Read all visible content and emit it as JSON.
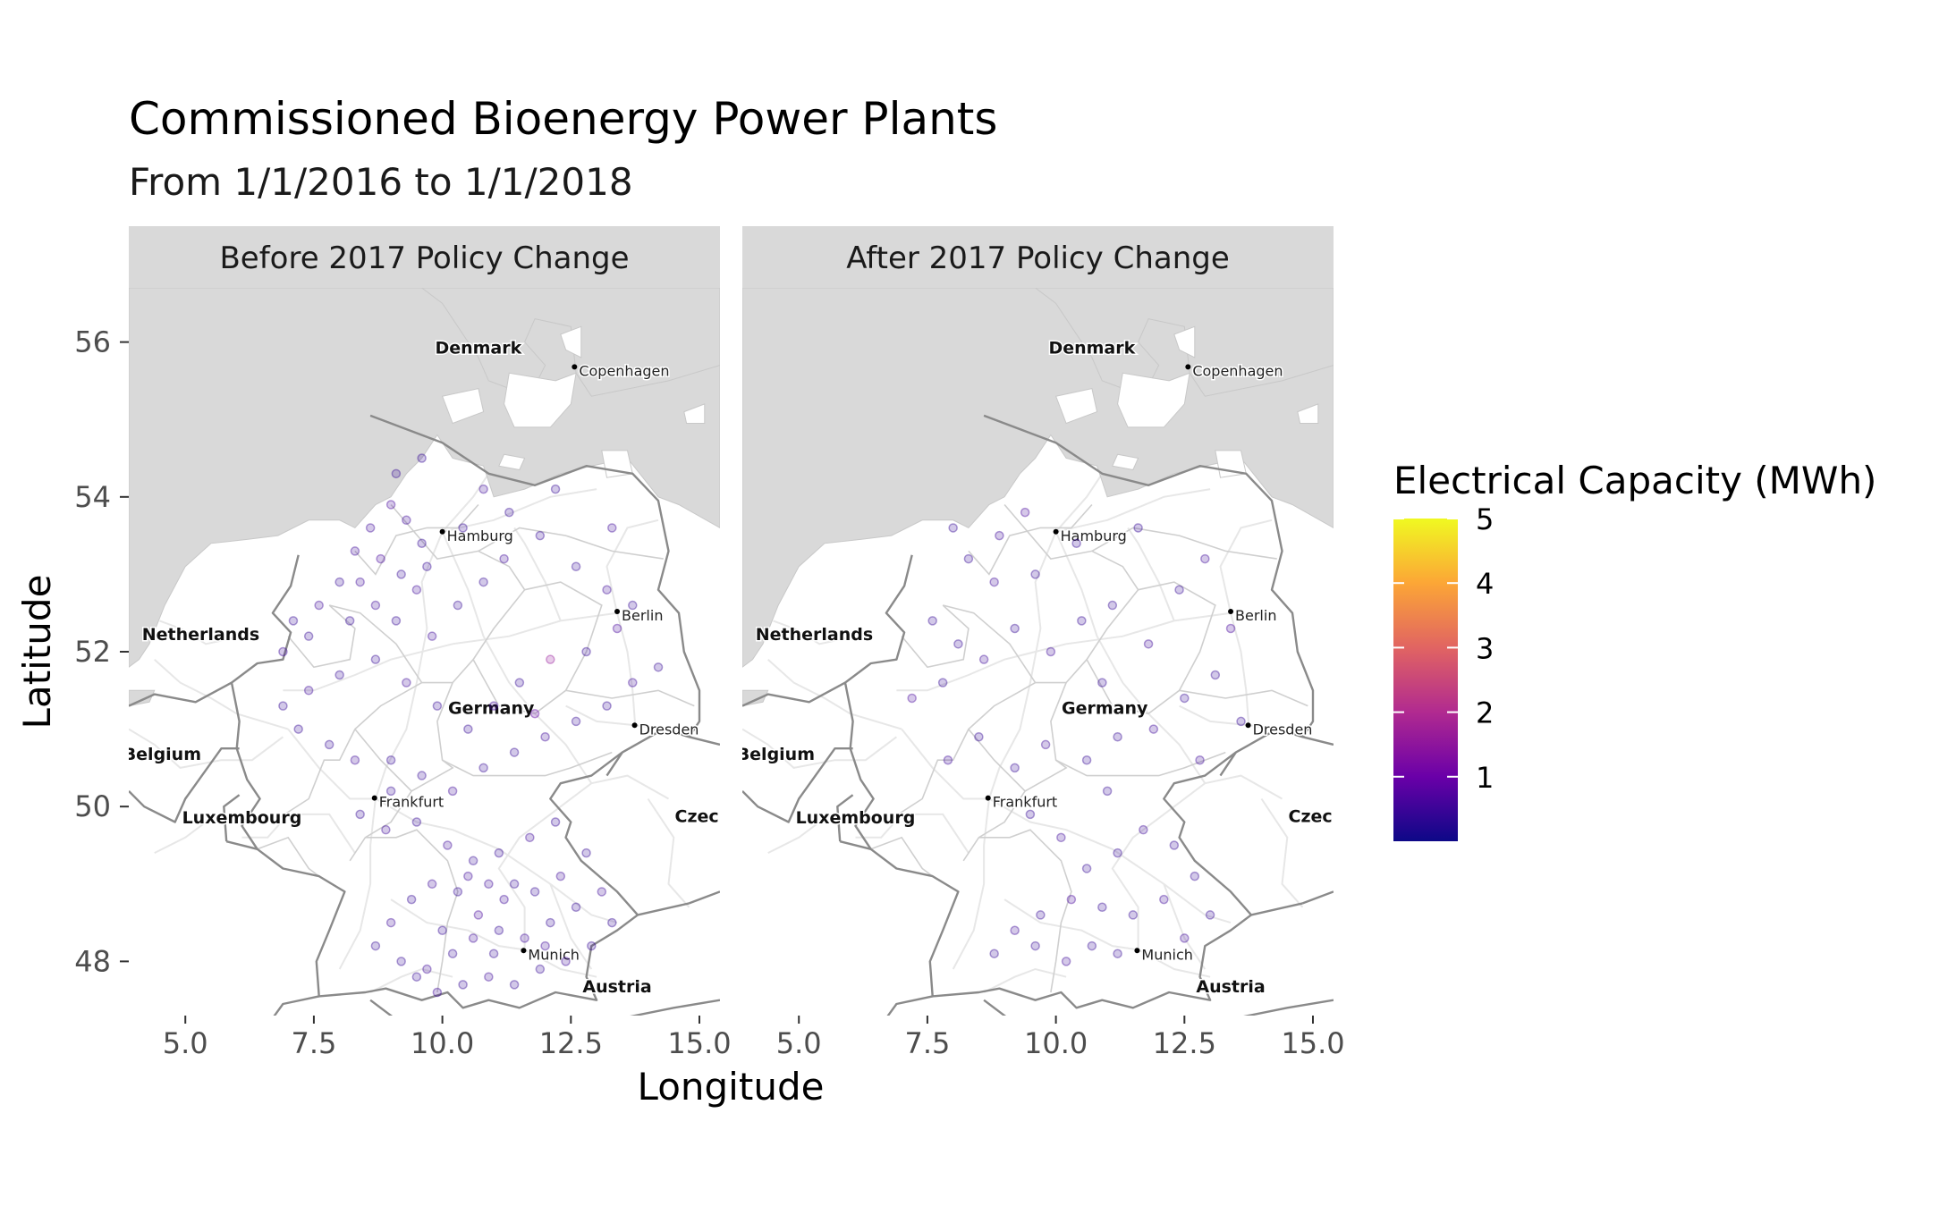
{
  "chart_data": {
    "type": "scatter",
    "title": "Commissioned Bioenergy Power Plants",
    "subtitle": "From 1/1/2016 to 1/1/2018",
    "xlabel": "Longitude",
    "ylabel": "Latitude",
    "xlim": [
      3.9,
      15.4
    ],
    "ylim": [
      47.3,
      56.7
    ],
    "x_ticks": [
      "5.0",
      "7.5",
      "10.0",
      "12.5",
      "15.0"
    ],
    "x_tick_values": [
      5.0,
      7.5,
      10.0,
      12.5,
      15.0
    ],
    "y_ticks": [
      "48",
      "50",
      "52",
      "54",
      "56"
    ],
    "y_tick_values": [
      48,
      50,
      52,
      54,
      56
    ],
    "grid": false,
    "basemap_color": "#d9d9d9",
    "legend": {
      "title": "Electrical Capacity (MWh)",
      "placement": "right",
      "labels": [
        "5",
        "4",
        "3",
        "2",
        "1"
      ],
      "values": [
        5,
        4,
        3,
        2,
        1
      ],
      "range": [
        0,
        5
      ],
      "colors": [
        "#0d0887",
        "#6a00a8",
        "#b12a90",
        "#e16462",
        "#fca636",
        "#f0f921"
      ]
    },
    "panels": [
      {
        "label": "Before 2017 Policy Change",
        "map_labels": [
          {
            "text": "Denmark",
            "kind": "country"
          },
          {
            "text": "Copenhagen",
            "kind": "city"
          },
          {
            "text": "Hamburg",
            "kind": "city"
          },
          {
            "text": "Berlin",
            "kind": "city"
          },
          {
            "text": "Netherlands",
            "kind": "country"
          },
          {
            "text": "Germany",
            "kind": "country"
          },
          {
            "text": "Dresden",
            "kind": "city"
          },
          {
            "text": "Belgium",
            "kind": "country"
          },
          {
            "text": "Frankfurt",
            "kind": "city"
          },
          {
            "text": "Luxembourg",
            "kind": "country"
          },
          {
            "text": "Czec",
            "kind": "country"
          },
          {
            "text": "Munich",
            "kind": "city"
          },
          {
            "text": "Austria",
            "kind": "country"
          }
        ],
        "points": [
          [
            9.0,
            53.9,
            0.6
          ],
          [
            9.3,
            53.7,
            0.5
          ],
          [
            9.6,
            53.4,
            0.4
          ],
          [
            8.6,
            53.6,
            0.5
          ],
          [
            8.3,
            53.3,
            0.5
          ],
          [
            8.8,
            53.2,
            0.6
          ],
          [
            9.2,
            53.0,
            0.4
          ],
          [
            9.5,
            52.8,
            0.5
          ],
          [
            8.0,
            52.9,
            0.4
          ],
          [
            7.6,
            52.6,
            0.5
          ],
          [
            8.2,
            52.4,
            0.4
          ],
          [
            8.7,
            52.6,
            0.5
          ],
          [
            9.1,
            52.4,
            0.4
          ],
          [
            9.8,
            52.2,
            0.5
          ],
          [
            10.3,
            52.6,
            0.4
          ],
          [
            10.8,
            52.9,
            0.4
          ],
          [
            11.2,
            53.2,
            0.5
          ],
          [
            11.9,
            53.5,
            0.4
          ],
          [
            12.6,
            53.1,
            0.4
          ],
          [
            13.2,
            52.8,
            0.5
          ],
          [
            13.7,
            52.6,
            0.4
          ],
          [
            13.4,
            52.3,
            0.6
          ],
          [
            12.8,
            52.0,
            0.4
          ],
          [
            12.1,
            51.9,
            1.6
          ],
          [
            11.5,
            51.6,
            0.4
          ],
          [
            11.0,
            51.3,
            0.5
          ],
          [
            10.5,
            51.0,
            0.4
          ],
          [
            9.9,
            51.3,
            0.4
          ],
          [
            9.3,
            51.6,
            0.5
          ],
          [
            8.7,
            51.9,
            0.4
          ],
          [
            8.0,
            51.7,
            0.4
          ],
          [
            7.4,
            51.5,
            0.5
          ],
          [
            6.9,
            51.3,
            0.4
          ],
          [
            7.2,
            51.0,
            0.4
          ],
          [
            7.8,
            50.8,
            0.4
          ],
          [
            8.3,
            50.6,
            0.5
          ],
          [
            9.0,
            50.6,
            0.4
          ],
          [
            9.6,
            50.4,
            0.4
          ],
          [
            10.2,
            50.2,
            0.5
          ],
          [
            10.8,
            50.5,
            0.4
          ],
          [
            11.4,
            50.7,
            0.4
          ],
          [
            12.0,
            50.9,
            0.5
          ],
          [
            12.6,
            51.1,
            0.4
          ],
          [
            13.2,
            51.3,
            0.4
          ],
          [
            13.7,
            51.6,
            0.5
          ],
          [
            14.2,
            51.8,
            0.4
          ],
          [
            11.8,
            51.2,
            0.9
          ],
          [
            9.0,
            50.2,
            0.4
          ],
          [
            8.4,
            49.9,
            0.4
          ],
          [
            8.9,
            49.7,
            0.5
          ],
          [
            9.5,
            49.8,
            0.4
          ],
          [
            10.1,
            49.5,
            0.5
          ],
          [
            10.6,
            49.3,
            0.4
          ],
          [
            11.1,
            49.4,
            0.4
          ],
          [
            11.7,
            49.6,
            0.5
          ],
          [
            12.2,
            49.8,
            0.4
          ],
          [
            12.8,
            49.4,
            0.4
          ],
          [
            12.3,
            49.1,
            0.5
          ],
          [
            11.8,
            48.9,
            0.4
          ],
          [
            11.2,
            48.8,
            0.5
          ],
          [
            10.7,
            48.6,
            0.6
          ],
          [
            10.3,
            48.9,
            0.4
          ],
          [
            9.8,
            49.0,
            0.5
          ],
          [
            9.4,
            48.8,
            0.4
          ],
          [
            9.0,
            48.5,
            0.5
          ],
          [
            8.7,
            48.2,
            0.4
          ],
          [
            9.2,
            48.0,
            0.4
          ],
          [
            9.7,
            47.9,
            0.5
          ],
          [
            10.2,
            48.1,
            0.4
          ],
          [
            10.6,
            48.3,
            0.5
          ],
          [
            11.1,
            48.4,
            0.4
          ],
          [
            11.6,
            48.3,
            0.5
          ],
          [
            12.1,
            48.5,
            0.4
          ],
          [
            12.6,
            48.7,
            0.4
          ],
          [
            13.1,
            48.9,
            0.5
          ],
          [
            13.3,
            48.5,
            0.4
          ],
          [
            12.9,
            48.2,
            0.4
          ],
          [
            12.4,
            48.0,
            0.5
          ],
          [
            11.9,
            47.9,
            0.4
          ],
          [
            11.4,
            47.7,
            0.4
          ],
          [
            10.9,
            47.8,
            0.5
          ],
          [
            10.4,
            47.7,
            0.4
          ],
          [
            9.9,
            47.6,
            0.5
          ],
          [
            9.5,
            47.8,
            0.4
          ],
          [
            10.5,
            49.1,
            0.5
          ],
          [
            11.0,
            48.1,
            0.4
          ],
          [
            12.0,
            48.2,
            0.5
          ],
          [
            10.0,
            48.4,
            0.4
          ],
          [
            10.9,
            49.0,
            0.5
          ],
          [
            11.4,
            49.0,
            0.4
          ],
          [
            7.4,
            52.2,
            0.4
          ],
          [
            6.9,
            52.0,
            0.5
          ],
          [
            7.1,
            52.4,
            0.4
          ],
          [
            8.4,
            52.9,
            0.5
          ],
          [
            9.7,
            53.1,
            0.4
          ],
          [
            10.4,
            53.6,
            0.4
          ],
          [
            10.8,
            54.1,
            0.5
          ],
          [
            11.3,
            53.8,
            0.4
          ],
          [
            12.2,
            54.1,
            0.4
          ],
          [
            13.3,
            53.6,
            0.5
          ],
          [
            9.1,
            54.3,
            0.4
          ],
          [
            9.6,
            54.5,
            0.4
          ]
        ]
      },
      {
        "label": "After 2017 Policy Change",
        "map_labels": [
          {
            "text": "Denmark",
            "kind": "country"
          },
          {
            "text": "Copenhagen",
            "kind": "city"
          },
          {
            "text": "Hamburg",
            "kind": "city"
          },
          {
            "text": "Berlin",
            "kind": "city"
          },
          {
            "text": "Netherlands",
            "kind": "country"
          },
          {
            "text": "Germany",
            "kind": "country"
          },
          {
            "text": "Dresden",
            "kind": "city"
          },
          {
            "text": "Belgium",
            "kind": "country"
          },
          {
            "text": "Frankfurt",
            "kind": "city"
          },
          {
            "text": "Luxembourg",
            "kind": "country"
          },
          {
            "text": "Czec",
            "kind": "country"
          },
          {
            "text": "Munich",
            "kind": "city"
          },
          {
            "text": "Austria",
            "kind": "country"
          }
        ],
        "points": [
          [
            9.4,
            53.8,
            0.6
          ],
          [
            8.9,
            53.5,
            0.5
          ],
          [
            8.3,
            53.2,
            0.4
          ],
          [
            8.8,
            52.9,
            0.5
          ],
          [
            7.6,
            52.4,
            0.4
          ],
          [
            8.1,
            52.1,
            0.4
          ],
          [
            8.6,
            51.9,
            0.5
          ],
          [
            7.2,
            51.4,
            0.6
          ],
          [
            7.8,
            51.6,
            0.4
          ],
          [
            9.2,
            52.3,
            0.4
          ],
          [
            9.9,
            52.0,
            0.5
          ],
          [
            10.5,
            52.4,
            0.4
          ],
          [
            11.1,
            52.6,
            0.4
          ],
          [
            11.8,
            52.1,
            0.5
          ],
          [
            12.4,
            52.8,
            0.4
          ],
          [
            13.4,
            52.3,
            0.6
          ],
          [
            13.1,
            51.7,
            0.4
          ],
          [
            12.5,
            51.4,
            0.4
          ],
          [
            11.9,
            51.0,
            0.5
          ],
          [
            11.2,
            50.9,
            0.4
          ],
          [
            10.6,
            50.6,
            0.4
          ],
          [
            9.8,
            50.8,
            0.5
          ],
          [
            9.2,
            50.5,
            0.4
          ],
          [
            8.5,
            50.9,
            0.4
          ],
          [
            7.9,
            50.6,
            0.5
          ],
          [
            9.5,
            49.9,
            0.4
          ],
          [
            10.1,
            49.6,
            0.5
          ],
          [
            10.6,
            49.2,
            0.4
          ],
          [
            11.2,
            49.4,
            0.4
          ],
          [
            11.7,
            49.7,
            0.5
          ],
          [
            12.3,
            49.5,
            0.4
          ],
          [
            12.7,
            49.1,
            0.4
          ],
          [
            12.1,
            48.8,
            0.5
          ],
          [
            11.5,
            48.6,
            0.4
          ],
          [
            10.9,
            48.7,
            0.4
          ],
          [
            10.3,
            48.8,
            0.6
          ],
          [
            9.7,
            48.6,
            0.4
          ],
          [
            9.2,
            48.4,
            0.5
          ],
          [
            8.8,
            48.1,
            0.4
          ],
          [
            9.6,
            48.2,
            0.4
          ],
          [
            10.2,
            48.0,
            0.5
          ],
          [
            10.7,
            48.2,
            0.4
          ],
          [
            11.2,
            48.1,
            0.4
          ],
          [
            12.5,
            48.3,
            0.5
          ],
          [
            13.0,
            48.6,
            0.4
          ],
          [
            10.4,
            53.4,
            0.4
          ],
          [
            11.6,
            53.6,
            0.4
          ],
          [
            12.9,
            53.2,
            0.5
          ],
          [
            8.0,
            53.6,
            0.4
          ],
          [
            9.6,
            53.0,
            0.4
          ],
          [
            10.9,
            51.6,
            0.4
          ],
          [
            12.8,
            50.6,
            0.5
          ],
          [
            13.6,
            51.1,
            0.4
          ],
          [
            11.0,
            50.2,
            0.4
          ]
        ]
      }
    ]
  }
}
